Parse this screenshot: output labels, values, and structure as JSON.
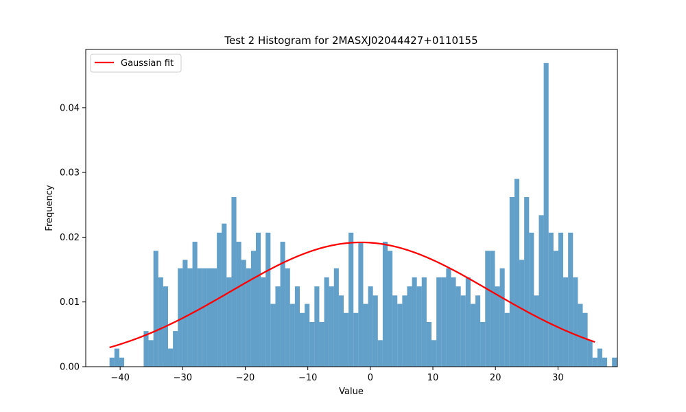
{
  "chart_data": {
    "type": "bar",
    "title": "Test 2 Histogram for 2MASXJ02044427+0110155",
    "xlabel": "Value",
    "ylabel": "Frequency",
    "xlim": [
      -45.5,
      39.5
    ],
    "ylim": [
      0,
      0.049
    ],
    "xticks": [
      -40,
      -30,
      -20,
      -10,
      0,
      10,
      20,
      30
    ],
    "xtick_labels": [
      "−40",
      "−30",
      "−20",
      "−10",
      "0",
      "10",
      "20",
      "30"
    ],
    "yticks": [
      0.0,
      0.01,
      0.02,
      0.03,
      0.04
    ],
    "ytick_labels": [
      "0.00",
      "0.01",
      "0.02",
      "0.03",
      "0.04"
    ],
    "grid": false,
    "legend": {
      "position": "top-left",
      "entries": [
        {
          "label": "Gaussian fit",
          "color": "#ff0000"
        }
      ]
    },
    "histogram": {
      "name": "",
      "color": "#1f77b4",
      "alpha": 0.7,
      "bin_start": -41.7,
      "bin_width": 0.78,
      "values": [
        0.0014,
        0.0028,
        0.0014,
        0,
        0,
        0,
        0,
        0.0055,
        0.0041,
        0.0179,
        0.0138,
        0.0124,
        0.0028,
        0.0055,
        0.0152,
        0.0165,
        0.0152,
        0.0193,
        0.0152,
        0.0152,
        0.0152,
        0.0152,
        0.0207,
        0.0221,
        0.0138,
        0.0262,
        0.0193,
        0.0165,
        0.0152,
        0.0179,
        0.0207,
        0.0138,
        0.0207,
        0.0097,
        0.0124,
        0.0193,
        0.0152,
        0.0097,
        0.0124,
        0.0083,
        0.0097,
        0.0069,
        0.0124,
        0.0069,
        0.0138,
        0.0124,
        0.0152,
        0.011,
        0.0083,
        0.0207,
        0.0083,
        0.0193,
        0.0097,
        0.0124,
        0.011,
        0.0041,
        0.0193,
        0.0179,
        0.011,
        0.0097,
        0.011,
        0.0124,
        0.0138,
        0.0124,
        0.0138,
        0.0069,
        0.0041,
        0.0138,
        0.0138,
        0.0152,
        0.0138,
        0.0124,
        0.011,
        0.0138,
        0.0097,
        0.011,
        0.0069,
        0.0179,
        0.0179,
        0.0124,
        0.0152,
        0.0083,
        0.0262,
        0.029,
        0.0165,
        0.0262,
        0.0207,
        0.011,
        0.0234,
        0.0469,
        0.0207,
        0.0179,
        0.0207,
        0.0138,
        0.0207,
        0.0138,
        0.0097,
        0.0083,
        0.0041,
        0.0014,
        0.0028,
        0.0014,
        0,
        0.0014
      ]
    },
    "gaussian_fit": {
      "name": "Gaussian fit",
      "color": "#ff0000",
      "mean": -1.5,
      "sigma": 20.8,
      "amplitude": 0.0192,
      "x_range": [
        -41.7,
        35.9
      ]
    }
  }
}
